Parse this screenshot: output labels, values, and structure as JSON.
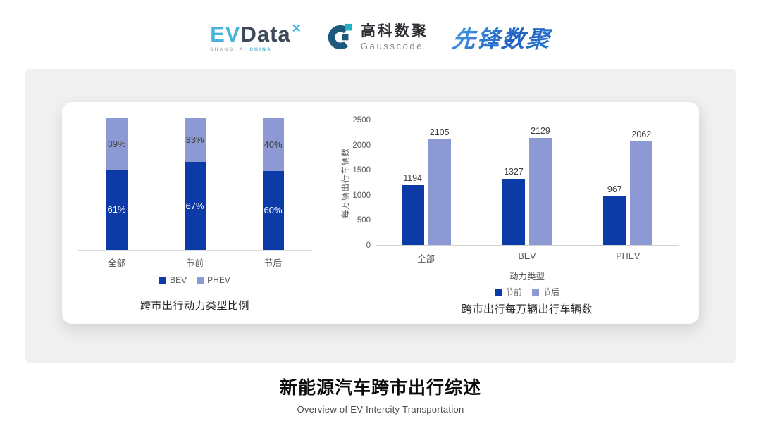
{
  "header": {
    "evdata": {
      "part1": "EV",
      "part2": "Data",
      "mark": "✕",
      "sub1": "SHANGHAI ",
      "sub2": "CHINA"
    },
    "gausscode": {
      "name_cn": "高科数聚",
      "name_en": "Gausscode"
    },
    "pioneer": {
      "name": "先锋数聚"
    }
  },
  "chart_data": [
    {
      "type": "bar",
      "variant": "stacked-100",
      "title": "跨市出行动力类型比例",
      "categories": [
        "全部",
        "节前",
        "节后"
      ],
      "series": [
        {
          "name": "BEV",
          "values": [
            61,
            67,
            60
          ],
          "color": "#0c3aa6",
          "label_color": "#ffffff"
        },
        {
          "name": "PHEV",
          "values": [
            39,
            33,
            40
          ],
          "color": "#8d99d2",
          "label_color": "#3f3f3f"
        }
      ],
      "value_suffix": "%",
      "xlabel": "",
      "ylabel": "",
      "ylim": [
        0,
        100
      ],
      "grid": false,
      "legend_position": "bottom"
    },
    {
      "type": "bar",
      "variant": "grouped",
      "title": "跨市出行每万辆出行车辆数",
      "categories": [
        "全部",
        "BEV",
        "PHEV"
      ],
      "series": [
        {
          "name": "节前",
          "values": [
            1194,
            1327,
            967
          ],
          "color": "#0c3aa6"
        },
        {
          "name": "节后",
          "values": [
            2105,
            2129,
            2062
          ],
          "color": "#8d99d2"
        }
      ],
      "xlabel": "动力类型",
      "ylabel": "每万辆出行车辆数",
      "yticks": [
        0,
        500,
        1000,
        1500,
        2000,
        2500
      ],
      "ylim": [
        0,
        2500
      ],
      "grid": false,
      "legend_position": "bottom"
    }
  ],
  "footer": {
    "title": "新能源汽车跨市出行综述",
    "subtitle": "Overview of EV Intercity Transportation"
  },
  "colors": {
    "primary_dark_blue": "#0c3aa6",
    "secondary_periwinkle": "#8d99d2",
    "panel_gray": "#f0f0f1",
    "card_white": "#ffffff",
    "axis_text": "#595959",
    "title_text": "#262626",
    "evdata_blue": "#48b4dc",
    "gauss_dark": "#1b5a7d",
    "gauss_teal": "#25b0c5"
  }
}
